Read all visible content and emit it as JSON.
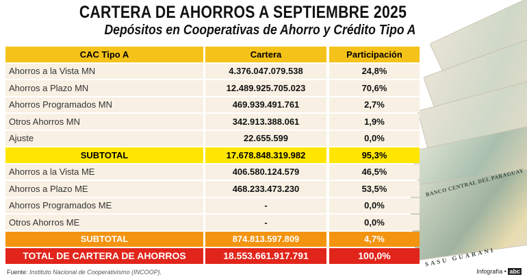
{
  "title": "CARTERA DE AHORROS A SEPTIEMBRE 2025",
  "subtitle": "Depósitos en Cooperativas de Ahorro y Crédito Tipo A",
  "table": {
    "headers": [
      "CAC Tipo A",
      "Cartera",
      "Participación"
    ],
    "rows_mn": [
      [
        "Ahorros a la Vista MN",
        "4.376.047.079.538",
        "24,8%"
      ],
      [
        "Ahorros a Plazo MN",
        "12.489.925.705.023",
        "70,6%"
      ],
      [
        "Ahorros Programados MN",
        "469.939.491.761",
        "2,7%"
      ],
      [
        "Otros Ahorros MN",
        "342.913.388.061",
        "1,9%"
      ],
      [
        "Ajuste",
        "22.655.599",
        "0,0%"
      ]
    ],
    "subtotal_mn": [
      "SUBTOTAL",
      "17.678.848.319.982",
      "95,3%"
    ],
    "rows_me": [
      [
        "Ahorros a la Vista ME",
        "406.580.124.579",
        "46,5%"
      ],
      [
        "Ahorros a Plazo ME",
        "468.233.473.230",
        "53,5%"
      ],
      [
        "Ahorros Programados ME",
        "-",
        "0,0%"
      ],
      [
        "Otros Ahorros ME",
        "-",
        "0,0%"
      ]
    ],
    "subtotal_me": [
      "SUBTOTAL",
      "874.813.597.809",
      "4,7%"
    ],
    "total": [
      "TOTAL DE CARTERA DE AHORROS",
      "18.553.661.917.791",
      "100,0%"
    ]
  },
  "footer": {
    "label": "Fuente:",
    "source": "Instituto Nacional de Cooperativismo (INCOOP)."
  },
  "credit": {
    "label": "Infografía •",
    "logo": "abc"
  },
  "colors": {
    "header": "#f5c21a",
    "subtotal_mn": "#ffe600",
    "subtotal_me": "#f39410",
    "total": "#e1251b",
    "row": "#f8f0e3"
  },
  "image": {
    "banknotes_text": [
      "BANCO CENTRAL DEL PARAGUAY",
      "SASU GUARANI"
    ]
  }
}
